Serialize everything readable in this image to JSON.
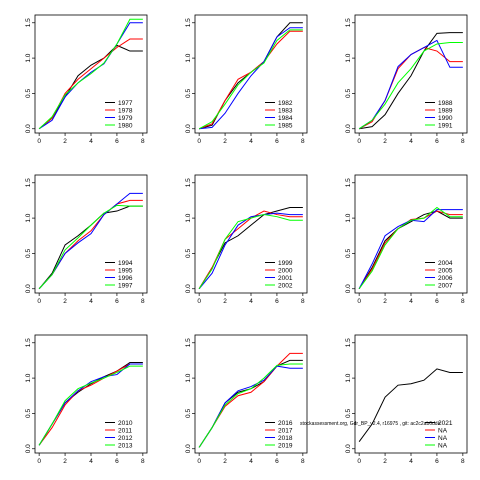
{
  "chart_data": [
    {
      "type": "line",
      "x": [
        0,
        1,
        2,
        3,
        4,
        5,
        6,
        7,
        8
      ],
      "xlim": [
        -0.32,
        8.32
      ],
      "ylim": [
        -0.06,
        1.61
      ],
      "xticks": [
        0,
        2,
        4,
        6,
        8
      ],
      "yticks": [
        {
          "value": 0,
          "label": "0.0"
        },
        0.5,
        {
          "value": 1,
          "label": "1.0"
        },
        1.5
      ],
      "legend": "bottomright",
      "series": [
        {
          "name": "1977",
          "color": "#000000",
          "values": [
            0,
            0.15,
            0.45,
            0.75,
            0.9,
            1.0,
            1.18,
            1.1,
            1.1
          ]
        },
        {
          "name": "1978",
          "color": "#ff0000",
          "values": [
            0,
            0.15,
            0.5,
            0.7,
            0.85,
            1.0,
            1.15,
            1.27,
            1.27
          ]
        },
        {
          "name": "1979",
          "color": "#0000ff",
          "values": [
            0,
            0.12,
            0.45,
            0.65,
            0.8,
            0.92,
            1.2,
            1.5,
            1.5
          ]
        },
        {
          "name": "1980",
          "color": "#00ff00",
          "values": [
            0,
            0.17,
            0.48,
            0.65,
            0.78,
            0.93,
            1.2,
            1.55,
            1.55
          ]
        }
      ]
    },
    {
      "type": "line",
      "x": [
        0,
        1,
        2,
        3,
        4,
        5,
        6,
        7,
        8
      ],
      "xlim": [
        -0.32,
        8.32
      ],
      "ylim": [
        -0.06,
        1.61
      ],
      "xticks": [
        0,
        2,
        4,
        6,
        8
      ],
      "yticks": [
        {
          "value": 0,
          "label": "0.0"
        },
        0.5,
        {
          "value": 1,
          "label": "1.0"
        },
        1.5
      ],
      "legend": "bottomright",
      "series": [
        {
          "name": "1982",
          "color": "#000000",
          "values": [
            0,
            0.05,
            0.4,
            0.65,
            0.8,
            0.95,
            1.3,
            1.5,
            1.5
          ]
        },
        {
          "name": "1983",
          "color": "#ff0000",
          "values": [
            0,
            0.07,
            0.4,
            0.7,
            0.8,
            0.95,
            1.2,
            1.38,
            1.38
          ]
        },
        {
          "name": "1984",
          "color": "#0000ff",
          "values": [
            0,
            0.02,
            0.22,
            0.5,
            0.75,
            0.95,
            1.3,
            1.43,
            1.43
          ]
        },
        {
          "name": "1985",
          "color": "#00ff00",
          "values": [
            0,
            0.1,
            0.35,
            0.62,
            0.8,
            0.93,
            1.25,
            1.4,
            1.4
          ]
        }
      ]
    },
    {
      "type": "line",
      "x": [
        0,
        1,
        2,
        3,
        4,
        5,
        6,
        7,
        8
      ],
      "xlim": [
        -0.32,
        8.32
      ],
      "ylim": [
        -0.06,
        1.61
      ],
      "xticks": [
        0,
        2,
        4,
        6,
        8
      ],
      "yticks": [
        {
          "value": 0,
          "label": "0.0"
        },
        0.5,
        {
          "value": 1,
          "label": "1.0"
        },
        1.5
      ],
      "legend": "bottomright",
      "series": [
        {
          "name": "1988",
          "color": "#000000",
          "values": [
            0,
            0.03,
            0.2,
            0.5,
            0.75,
            1.1,
            1.35,
            1.36,
            1.36
          ]
        },
        {
          "name": "1989",
          "color": "#ff0000",
          "values": [
            0,
            0.1,
            0.4,
            0.85,
            1.05,
            1.15,
            1.1,
            0.95,
            0.95
          ]
        },
        {
          "name": "1990",
          "color": "#0000ff",
          "values": [
            0,
            0.12,
            0.4,
            0.88,
            1.05,
            1.15,
            1.25,
            0.87,
            0.87
          ]
        },
        {
          "name": "1991",
          "color": "#00ff00",
          "values": [
            0,
            0.12,
            0.35,
            0.65,
            0.85,
            1.1,
            1.2,
            1.22,
            1.22
          ]
        }
      ]
    },
    {
      "type": "line",
      "x": [
        0,
        1,
        2,
        3,
        4,
        5,
        6,
        7,
        8
      ],
      "xlim": [
        -0.32,
        8.32
      ],
      "ylim": [
        -0.06,
        1.61
      ],
      "xticks": [
        0,
        2,
        4,
        6,
        8
      ],
      "yticks": [
        {
          "value": 0,
          "label": "0.0"
        },
        0.5,
        {
          "value": 1,
          "label": "1.0"
        },
        1.5
      ],
      "legend": "bottomright",
      "series": [
        {
          "name": "1994",
          "color": "#000000",
          "values": [
            0,
            0.22,
            0.62,
            0.75,
            0.9,
            1.07,
            1.1,
            1.17,
            1.17
          ]
        },
        {
          "name": "1995",
          "color": "#ff0000",
          "values": [
            0,
            0.2,
            0.5,
            0.68,
            0.82,
            1.05,
            1.2,
            1.25,
            1.25
          ]
        },
        {
          "name": "1996",
          "color": "#0000ff",
          "values": [
            0,
            0.2,
            0.5,
            0.65,
            0.78,
            1.05,
            1.2,
            1.35,
            1.35
          ]
        },
        {
          "name": "1997",
          "color": "#00ff00",
          "values": [
            0,
            0.2,
            0.55,
            0.72,
            0.9,
            1.07,
            1.18,
            1.17,
            1.17
          ]
        }
      ]
    },
    {
      "type": "line",
      "x": [
        0,
        1,
        2,
        3,
        4,
        5,
        6,
        7,
        8
      ],
      "xlim": [
        -0.32,
        8.32
      ],
      "ylim": [
        -0.06,
        1.61
      ],
      "xticks": [
        0,
        2,
        4,
        6,
        8
      ],
      "yticks": [
        {
          "value": 0,
          "label": "0.0"
        },
        0.5,
        {
          "value": 1,
          "label": "1.0"
        },
        1.5
      ],
      "legend": "bottomright",
      "series": [
        {
          "name": "1999",
          "color": "#000000",
          "values": [
            0,
            0.3,
            0.65,
            0.75,
            0.9,
            1.05,
            1.1,
            1.15,
            1.15
          ]
        },
        {
          "name": "2000",
          "color": "#ff0000",
          "values": [
            0,
            0.3,
            0.7,
            0.85,
            1.0,
            1.1,
            1.05,
            1.02,
            1.02
          ]
        },
        {
          "name": "2001",
          "color": "#0000ff",
          "values": [
            0,
            0.22,
            0.62,
            0.9,
            1.02,
            1.05,
            1.07,
            1.05,
            1.05
          ]
        },
        {
          "name": "2002",
          "color": "#00ff00",
          "values": [
            0,
            0.28,
            0.7,
            0.95,
            1.0,
            1.05,
            1.02,
            0.97,
            0.97
          ]
        }
      ]
    },
    {
      "type": "line",
      "x": [
        0,
        1,
        2,
        3,
        4,
        5,
        6,
        7,
        8
      ],
      "xlim": [
        -0.32,
        8.32
      ],
      "ylim": [
        -0.06,
        1.61
      ],
      "xticks": [
        0,
        2,
        4,
        6,
        8
      ],
      "yticks": [
        {
          "value": 0,
          "label": "0.0"
        },
        0.5,
        {
          "value": 1,
          "label": "1.0"
        },
        1.5
      ],
      "legend": "bottomright",
      "series": [
        {
          "name": "2004",
          "color": "#000000",
          "values": [
            0,
            0.3,
            0.68,
            0.85,
            0.95,
            1.05,
            1.1,
            1.0,
            1.0
          ]
        },
        {
          "name": "2005",
          "color": "#ff0000",
          "values": [
            0,
            0.28,
            0.65,
            0.85,
            0.98,
            1.0,
            1.1,
            1.05,
            1.05
          ]
        },
        {
          "name": "2006",
          "color": "#0000ff",
          "values": [
            0,
            0.35,
            0.75,
            0.88,
            0.97,
            0.95,
            1.12,
            1.12,
            1.12
          ]
        },
        {
          "name": "2007",
          "color": "#00ff00",
          "values": [
            0,
            0.25,
            0.62,
            0.85,
            0.97,
            1.0,
            1.15,
            1.02,
            1.02
          ]
        }
      ]
    },
    {
      "type": "line",
      "x": [
        0,
        1,
        2,
        3,
        4,
        5,
        6,
        7,
        8
      ],
      "xlim": [
        -0.32,
        8.32
      ],
      "ylim": [
        -0.06,
        1.61
      ],
      "xticks": [
        0,
        2,
        4,
        6,
        8
      ],
      "yticks": [
        {
          "value": 0,
          "label": "0.0"
        },
        0.5,
        {
          "value": 1,
          "label": "1.0"
        },
        1.5
      ],
      "legend": "bottomright",
      "series": [
        {
          "name": "2010",
          "color": "#000000",
          "values": [
            0.05,
            0.35,
            0.65,
            0.8,
            0.92,
            1.02,
            1.1,
            1.22,
            1.22
          ]
        },
        {
          "name": "2011",
          "color": "#ff0000",
          "values": [
            0.05,
            0.3,
            0.62,
            0.82,
            0.9,
            1.0,
            1.1,
            1.2,
            1.2
          ]
        },
        {
          "name": "2012",
          "color": "#0000ff",
          "values": [
            0.05,
            0.35,
            0.65,
            0.82,
            0.95,
            1.02,
            1.05,
            1.2,
            1.2
          ]
        },
        {
          "name": "2013",
          "color": "#00ff00",
          "values": [
            0.05,
            0.35,
            0.68,
            0.85,
            0.93,
            1.0,
            1.08,
            1.17,
            1.17
          ]
        }
      ]
    },
    {
      "type": "line",
      "x": [
        0,
        1,
        2,
        3,
        4,
        5,
        6,
        7,
        8
      ],
      "xlim": [
        -0.32,
        8.32
      ],
      "ylim": [
        -0.06,
        1.61
      ],
      "xticks": [
        0,
        2,
        4,
        6,
        8
      ],
      "yticks": [
        {
          "value": 0,
          "label": "0.0"
        },
        0.5,
        {
          "value": 1,
          "label": "1.0"
        },
        1.5
      ],
      "legend": "bottomright",
      "series": [
        {
          "name": "2016",
          "color": "#000000",
          "values": [
            0.02,
            0.3,
            0.65,
            0.8,
            0.85,
            0.95,
            1.17,
            1.25,
            1.25
          ]
        },
        {
          "name": "2017",
          "color": "#ff0000",
          "values": [
            0.02,
            0.3,
            0.6,
            0.75,
            0.8,
            0.95,
            1.17,
            1.35,
            1.35
          ]
        },
        {
          "name": "2018",
          "color": "#0000ff",
          "values": [
            0.02,
            0.3,
            0.65,
            0.82,
            0.88,
            0.97,
            1.17,
            1.14,
            1.14
          ]
        },
        {
          "name": "2019",
          "color": "#00ff00",
          "values": [
            0.02,
            0.3,
            0.62,
            0.78,
            0.85,
            1.0,
            1.18,
            1.2,
            1.2
          ]
        }
      ]
    },
    {
      "type": "line",
      "x": [
        0,
        1,
        2,
        3,
        4,
        5,
        6,
        7,
        8
      ],
      "xlim": [
        -0.32,
        8.32
      ],
      "ylim": [
        -0.06,
        1.61
      ],
      "xticks": [
        0,
        2,
        4,
        6,
        8
      ],
      "yticks": [
        {
          "value": 0,
          "label": "0.0"
        },
        0.5,
        {
          "value": 1,
          "label": "1.0"
        },
        1.5
      ],
      "legend": "bottomright",
      "series": [
        {
          "name": "2021",
          "color": "#000000",
          "values": [
            0.1,
            0.35,
            0.73,
            0.9,
            0.92,
            0.97,
            1.13,
            1.08,
            1.08
          ]
        },
        {
          "name": "NA",
          "color": "#ff0000",
          "values": [
            null,
            null,
            null,
            null,
            null,
            null,
            null,
            null,
            null
          ]
        },
        {
          "name": "NA",
          "color": "#0000ff",
          "values": [
            null,
            null,
            null,
            null,
            null,
            null,
            null,
            null,
            null
          ]
        },
        {
          "name": "NA",
          "color": "#00ff00",
          "values": [
            null,
            null,
            null,
            null,
            null,
            null,
            null,
            null,
            null
          ]
        }
      ]
    }
  ],
  "annotation": "stockassessment.org, Gdr_BP_v2.4, r16975 , git: ac2c2ab6dde"
}
